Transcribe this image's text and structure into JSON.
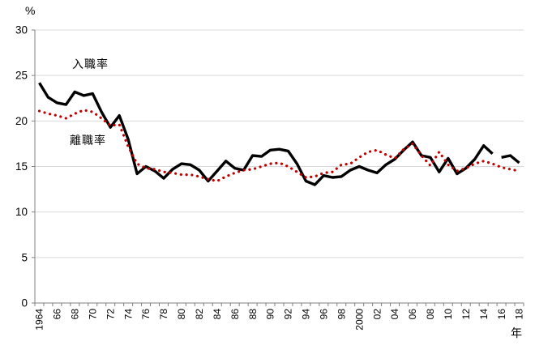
{
  "chart_data": {
    "type": "line",
    "title": "",
    "y_axis": {
      "unit_label": "%",
      "min": 0,
      "max": 30,
      "tick_interval": 5,
      "ticks": [
        0,
        5,
        10,
        15,
        20,
        25,
        30
      ]
    },
    "x_axis": {
      "unit_label": "年",
      "years": [
        1964,
        1965,
        1966,
        1967,
        1968,
        1969,
        1970,
        1971,
        1972,
        1973,
        1974,
        1975,
        1976,
        1977,
        1978,
        1979,
        1980,
        1981,
        1982,
        1983,
        1984,
        1985,
        1986,
        1987,
        1988,
        1989,
        1990,
        1991,
        1992,
        1993,
        1994,
        1995,
        1996,
        1997,
        1998,
        1999,
        2000,
        2001,
        2002,
        2003,
        2004,
        2005,
        2006,
        2007,
        2008,
        2009,
        2010,
        2011,
        2012,
        2013,
        2014,
        2015,
        2016,
        2017,
        2018
      ],
      "tick_labels": [
        "1964",
        "66",
        "68",
        "70",
        "72",
        "74",
        "76",
        "78",
        "80",
        "82",
        "84",
        "86",
        "88",
        "90",
        "92",
        "94",
        "96",
        "98",
        "2000",
        "02",
        "04",
        "06",
        "08",
        "10",
        "12",
        "14",
        "16",
        "18"
      ],
      "label_every_n_years": 2
    },
    "grid": "horizontal",
    "legend": "inline-annotations",
    "colors": {
      "grid": "#d9d9d9",
      "axis": "#808080",
      "text": "#000000",
      "background": "#ffffff"
    },
    "series": [
      {
        "name": "入職率",
        "style": "solid",
        "color": "#000000",
        "stroke_width": 3.4,
        "break_after_year": 2015,
        "values": [
          24.2,
          22.6,
          22.0,
          21.8,
          23.2,
          22.8,
          23.0,
          21.0,
          19.3,
          20.6,
          18.0,
          14.2,
          15.0,
          14.5,
          13.7,
          14.7,
          15.3,
          15.2,
          14.6,
          13.4,
          14.5,
          15.6,
          14.8,
          14.6,
          16.2,
          16.1,
          16.8,
          16.9,
          16.7,
          15.3,
          13.4,
          13.0,
          14.0,
          13.8,
          13.9,
          14.6,
          15.0,
          14.6,
          14.3,
          15.2,
          15.8,
          16.8,
          17.7,
          16.2,
          16.0,
          14.4,
          15.9,
          14.2,
          14.8,
          15.8,
          17.3,
          16.4,
          16.0,
          16.2,
          15.4
        ]
      },
      {
        "name": "離職率",
        "style": "dotted",
        "color": "#c00000",
        "stroke_width": 3.2,
        "values": [
          21.1,
          20.8,
          20.6,
          20.3,
          20.8,
          21.2,
          21.0,
          20.3,
          19.5,
          19.6,
          17.2,
          15.3,
          14.8,
          14.7,
          14.4,
          14.3,
          14.1,
          14.1,
          13.9,
          13.6,
          13.4,
          13.9,
          14.3,
          14.6,
          14.7,
          15.0,
          15.3,
          15.4,
          15.0,
          14.4,
          13.8,
          13.9,
          14.3,
          14.4,
          15.2,
          15.3,
          16.0,
          16.6,
          16.8,
          16.3,
          15.9,
          16.9,
          17.5,
          16.2,
          15.1,
          16.6,
          15.2,
          14.5,
          14.8,
          15.3,
          15.6,
          15.3,
          14.9,
          14.7,
          14.5
        ]
      }
    ]
  }
}
